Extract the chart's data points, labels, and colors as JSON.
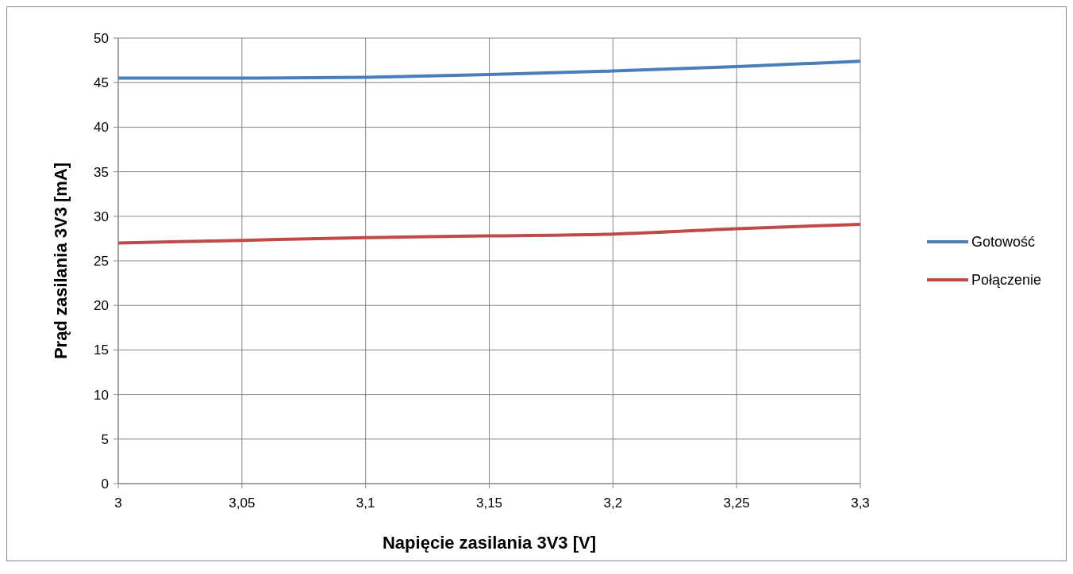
{
  "chart_data": {
    "type": "line",
    "xlabel": "Napięcie zasilania 3V3 [V]",
    "ylabel": "Prąd zasilania 3V3 [mA]",
    "x": [
      3,
      3.05,
      3.1,
      3.15,
      3.2,
      3.25,
      3.3
    ],
    "series": [
      {
        "name": "Gotowość",
        "color": "#4a7ebb",
        "values": [
          45.5,
          45.5,
          45.6,
          45.9,
          46.3,
          46.8,
          47.4
        ]
      },
      {
        "name": "Połączenie",
        "color": "#be4b48",
        "values": [
          27.0,
          27.3,
          27.6,
          27.8,
          28.0,
          28.6,
          29.1
        ]
      }
    ],
    "xlim": [
      3,
      3.3
    ],
    "xticks": [
      3,
      {
        "value": 3.05,
        "label": "3,05"
      },
      {
        "value": 3.1,
        "label": "3,1"
      },
      {
        "value": 3.15,
        "label": "3,15"
      },
      {
        "value": 3.2,
        "label": "3,2"
      },
      {
        "value": 3.25,
        "label": "3,25"
      },
      {
        "value": 3.3,
        "label": "3,3"
      }
    ],
    "ylim": [
      0,
      50
    ],
    "yticks": [
      0,
      5,
      10,
      15,
      20,
      25,
      30,
      35,
      40,
      45,
      50
    ],
    "grid": true,
    "legend": "right",
    "marker": "none",
    "line_style": "solid"
  }
}
